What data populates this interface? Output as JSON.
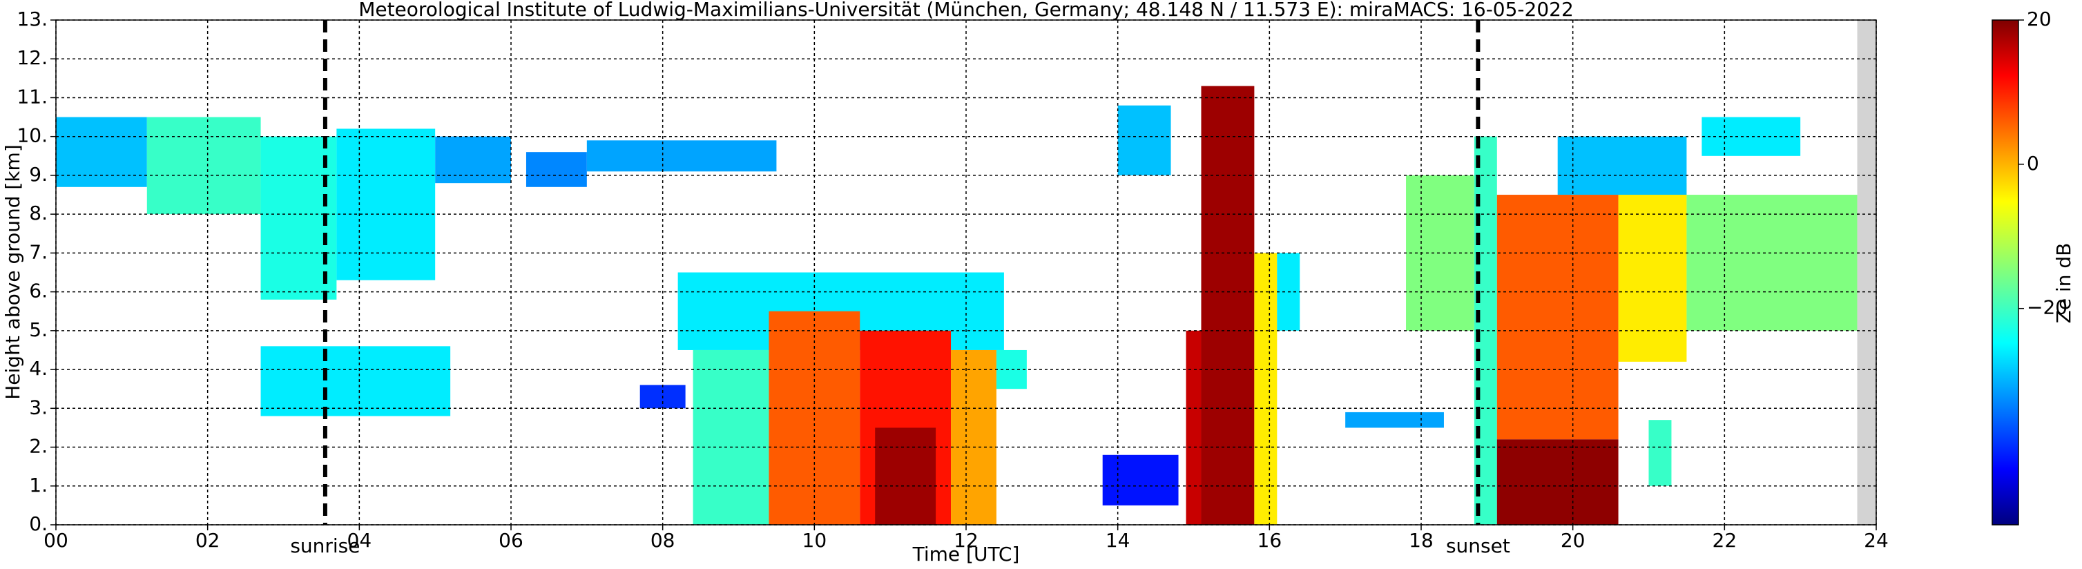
{
  "chart_data": {
    "type": "heatmap",
    "title": "Meteorological Institute of Ludwig-Maximilians-Universität (München, Germany; 48.148 N / 11.573 E):    miraMACS: 16-05-2022",
    "x_label": "Time [UTC]",
    "y_label": "Height above ground [km]",
    "colorbar_label": "Ze in dB",
    "colormap": "jet",
    "xlim": [
      0,
      24
    ],
    "ylim": [
      0,
      13
    ],
    "clim": [
      -50,
      20
    ],
    "xticks": [
      {
        "value": 0,
        "label": "00"
      },
      {
        "value": 2,
        "label": "02"
      },
      {
        "value": 4,
        "label": "04"
      },
      {
        "value": 6,
        "label": "06"
      },
      {
        "value": 8,
        "label": "08"
      },
      10,
      12,
      14,
      16,
      18,
      20,
      22,
      24
    ],
    "yticks": [
      {
        "value": 0,
        "label": "0."
      },
      {
        "value": 1,
        "label": "1."
      },
      {
        "value": 2,
        "label": "2."
      },
      {
        "value": 3,
        "label": "3."
      },
      {
        "value": 4,
        "label": "4."
      },
      {
        "value": 5,
        "label": "5."
      },
      {
        "value": 6,
        "label": "6."
      },
      {
        "value": 7,
        "label": "7."
      },
      {
        "value": 8,
        "label": "8."
      },
      {
        "value": 9,
        "label": "9."
      },
      {
        "value": 10,
        "label": "10."
      },
      {
        "value": 11,
        "label": "11."
      },
      {
        "value": 12,
        "label": "12."
      },
      {
        "value": 13,
        "label": "13."
      }
    ],
    "cticks": [
      20,
      0,
      {
        "value": -20,
        "label": "−20"
      }
    ],
    "grid": true,
    "cells": [
      [
        0,
        1.2,
        8.7,
        10.5,
        -28
      ],
      [
        1.2,
        2.7,
        8,
        10.5,
        -20
      ],
      [
        2.7,
        3.7,
        5.8,
        10,
        -22
      ],
      [
        3.7,
        5,
        6.3,
        10.2,
        -25
      ],
      [
        5,
        6,
        8.8,
        10,
        -30
      ],
      [
        6.2,
        7,
        8.7,
        9.6,
        -32
      ],
      [
        7,
        9.5,
        9.1,
        9.9,
        -30
      ],
      [
        2.7,
        5.2,
        2.8,
        4.6,
        -25
      ],
      [
        7.7,
        8.3,
        3,
        3.6,
        -38
      ],
      [
        8.2,
        12.5,
        4.5,
        6.5,
        -25
      ],
      [
        8.4,
        9.4,
        0,
        4.5,
        -20
      ],
      [
        9.4,
        10.6,
        0,
        5.5,
        5
      ],
      [
        10.6,
        11.8,
        0,
        5,
        10
      ],
      [
        10.8,
        11.6,
        0,
        2.5,
        18
      ],
      [
        11.8,
        12.4,
        0,
        4.5,
        0
      ],
      [
        12.4,
        12.8,
        3.5,
        4.5,
        -22
      ],
      [
        13.8,
        14.8,
        0.5,
        1.8,
        -40
      ],
      [
        14,
        14.7,
        9,
        10.8,
        -28
      ],
      [
        14.9,
        15.1,
        0,
        5,
        15
      ],
      [
        15.1,
        15.8,
        0,
        11.3,
        18
      ],
      [
        15.8,
        16.1,
        0,
        7,
        -5
      ],
      [
        16.1,
        16.4,
        5,
        7,
        -25
      ],
      [
        17,
        18.3,
        2.5,
        2.9,
        -30
      ],
      [
        17.8,
        18.7,
        5,
        9,
        -15
      ],
      [
        18.7,
        19,
        0,
        10,
        -20
      ],
      [
        19,
        20.6,
        2.2,
        8.5,
        5
      ],
      [
        19,
        20.6,
        0,
        2.2,
        19
      ],
      [
        20.6,
        21.5,
        4.2,
        8.8,
        -5
      ],
      [
        21.5,
        23.75,
        5,
        8.5,
        -15
      ],
      [
        19.8,
        21.5,
        8.5,
        10,
        -28
      ],
      [
        21.7,
        23,
        9.5,
        10.5,
        -25
      ],
      [
        21,
        21.3,
        1,
        2.7,
        -20
      ]
    ],
    "annotations": [
      {
        "text": "sunrise",
        "x": 3.55
      },
      {
        "text": "sunset",
        "x": 18.75
      }
    ]
  }
}
